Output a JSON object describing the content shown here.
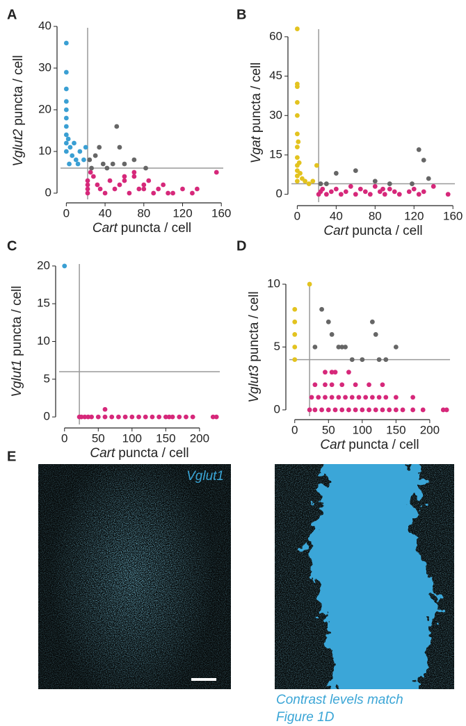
{
  "chart_data": [
    {
      "type": "scatter",
      "panel": "A",
      "xlabel_gene": "Cart",
      "xlabel": "puncta / cell",
      "ylabel_gene": "Vglut2",
      "ylabel": "puncta / cell",
      "xlim": [
        -6,
        162
      ],
      "ylim": [
        -1.5,
        41
      ],
      "xticks": [
        0,
        40,
        80,
        120,
        160
      ],
      "yticks": [
        0,
        10,
        20,
        30,
        40
      ],
      "vline": 22,
      "hline": 6,
      "line_color": "#999999",
      "series": [
        {
          "color": "#3a9fd3",
          "x": [
            0,
            0,
            0,
            0,
            0,
            0,
            0,
            0,
            0,
            0,
            2,
            4,
            6,
            8,
            10,
            14,
            18,
            3,
            12,
            20
          ],
          "values": [
            36,
            29,
            25,
            22,
            20,
            18,
            16,
            14,
            12,
            10,
            13,
            11,
            9,
            12,
            8,
            10,
            8,
            7,
            7,
            11
          ]
        },
        {
          "color": "#666666",
          "x": [
            24,
            30,
            34,
            38,
            42,
            52,
            55,
            60,
            70,
            82,
            26,
            48
          ],
          "values": [
            8,
            9,
            11,
            7,
            6,
            16,
            11,
            7,
            8,
            6,
            6,
            7
          ]
        },
        {
          "color": "#d6287a",
          "x": [
            22,
            22,
            22,
            22,
            25,
            28,
            32,
            35,
            40,
            45,
            50,
            55,
            60,
            65,
            70,
            75,
            80,
            85,
            90,
            95,
            100,
            105,
            60,
            70,
            80,
            120,
            130,
            135,
            155,
            110
          ],
          "values": [
            0,
            1,
            2,
            3,
            5,
            4,
            2,
            1,
            0,
            3,
            1,
            2,
            4,
            0,
            5,
            1,
            2,
            3,
            0,
            1,
            2,
            0,
            3,
            4,
            1,
            1,
            0,
            1,
            5,
            0
          ]
        }
      ]
    },
    {
      "type": "scatter",
      "panel": "B",
      "xlabel_gene": "Cart",
      "xlabel": "puncta / cell",
      "ylabel_gene": "Vgat",
      "ylabel": "puncta / cell",
      "xlim": [
        -6,
        162
      ],
      "ylim": [
        -3,
        65
      ],
      "xticks": [
        0,
        40,
        80,
        120,
        160
      ],
      "yticks": [
        0,
        15,
        30,
        45,
        60
      ],
      "vline": 22,
      "hline": 4,
      "line_color": "#999999",
      "series": [
        {
          "color": "#e3c31f",
          "x": [
            0,
            0,
            0,
            0,
            0,
            0,
            0,
            0,
            0,
            0,
            0,
            0,
            1,
            2,
            3,
            5,
            8,
            12,
            16,
            20
          ],
          "values": [
            63,
            42,
            41,
            35,
            30,
            23,
            18,
            14,
            11,
            9,
            7,
            5,
            20,
            12,
            8,
            6,
            5,
            4,
            5,
            11
          ]
        },
        {
          "color": "#666666",
          "x": [
            24,
            30,
            40,
            60,
            80,
            125,
            130,
            135,
            118,
            95
          ],
          "values": [
            4,
            4,
            8,
            9,
            5,
            17,
            13,
            6,
            4,
            4
          ]
        },
        {
          "color": "#d6287a",
          "x": [
            22,
            24,
            26,
            30,
            35,
            40,
            45,
            50,
            55,
            60,
            65,
            70,
            75,
            80,
            85,
            90,
            95,
            100,
            105,
            115,
            120,
            125,
            130,
            140,
            155,
            88
          ],
          "values": [
            0,
            1,
            2,
            0,
            1,
            2,
            0,
            1,
            3,
            0,
            2,
            1,
            0,
            3,
            1,
            0,
            2,
            1,
            0,
            1,
            2,
            0,
            1,
            3,
            0,
            2
          ]
        }
      ]
    },
    {
      "type": "scatter",
      "panel": "C",
      "xlabel_gene": "Cart",
      "xlabel": "puncta / cell",
      "ylabel_gene": "Vglut1",
      "ylabel": "puncta / cell",
      "xlim": [
        -8,
        230
      ],
      "ylim": [
        -1,
        21
      ],
      "xticks": [
        0,
        50,
        100,
        150,
        200
      ],
      "yticks": [
        0,
        5,
        10,
        15,
        20
      ],
      "vline": 22,
      "hline": 6,
      "line_color": "#999999",
      "series": [
        {
          "color": "#3a9fd3",
          "x": [
            0
          ],
          "values": [
            20
          ]
        },
        {
          "color": "#d6287a",
          "x": [
            22,
            30,
            40,
            50,
            60,
            60,
            70,
            80,
            90,
            100,
            110,
            120,
            130,
            140,
            150,
            160,
            170,
            180,
            190,
            25,
            35,
            220,
            225,
            155
          ],
          "values": [
            0,
            0,
            0,
            0,
            0,
            1,
            0,
            0,
            0,
            0,
            0,
            0,
            0,
            0,
            0,
            0,
            0,
            0,
            0,
            0,
            0,
            0,
            0,
            0
          ]
        }
      ]
    },
    {
      "type": "scatter",
      "panel": "D",
      "xlabel_gene": "Cart",
      "xlabel": "puncta / cell",
      "ylabel_gene": "Vglut3",
      "ylabel": "puncta / cell",
      "xlim": [
        -8,
        230
      ],
      "ylim": [
        -0.5,
        10.5
      ],
      "xticks": [
        0,
        50,
        100,
        150,
        200
      ],
      "yticks": [
        0,
        5,
        10
      ],
      "vline": 22,
      "hline": 4,
      "line_color": "#999999",
      "series": [
        {
          "color": "#e3c31f",
          "x": [
            0,
            0,
            0,
            0,
            0,
            22
          ],
          "values": [
            8,
            7,
            6,
            5,
            4,
            10
          ]
        },
        {
          "color": "#666666",
          "x": [
            30,
            40,
            50,
            55,
            65,
            70,
            75,
            85,
            100,
            115,
            120,
            125,
            135,
            150
          ],
          "values": [
            5,
            8,
            7,
            6,
            5,
            5,
            5,
            4,
            4,
            7,
            6,
            4,
            4,
            5
          ]
        },
        {
          "color": "#d6287a",
          "x": [
            22,
            30,
            40,
            50,
            60,
            70,
            80,
            90,
            100,
            110,
            120,
            130,
            140,
            150,
            160,
            175,
            190,
            220,
            225,
            25,
            35,
            45,
            55,
            65,
            75,
            85,
            95,
            105,
            115,
            125,
            135,
            150,
            175,
            30,
            45,
            55,
            70,
            90,
            110,
            130,
            45,
            55,
            60,
            80
          ],
          "values": [
            0,
            0,
            0,
            0,
            0,
            0,
            0,
            0,
            0,
            0,
            0,
            0,
            0,
            0,
            0,
            0,
            0,
            0,
            0,
            1,
            1,
            1,
            1,
            1,
            1,
            1,
            1,
            1,
            1,
            1,
            1,
            1,
            1,
            2,
            2,
            2,
            2,
            2,
            2,
            2,
            3,
            3,
            3,
            3
          ]
        }
      ]
    }
  ],
  "panel_e": {
    "label": "E",
    "image_label": "Vglut1",
    "caption": [
      "Contrast levels match",
      "Figure 1D"
    ]
  }
}
